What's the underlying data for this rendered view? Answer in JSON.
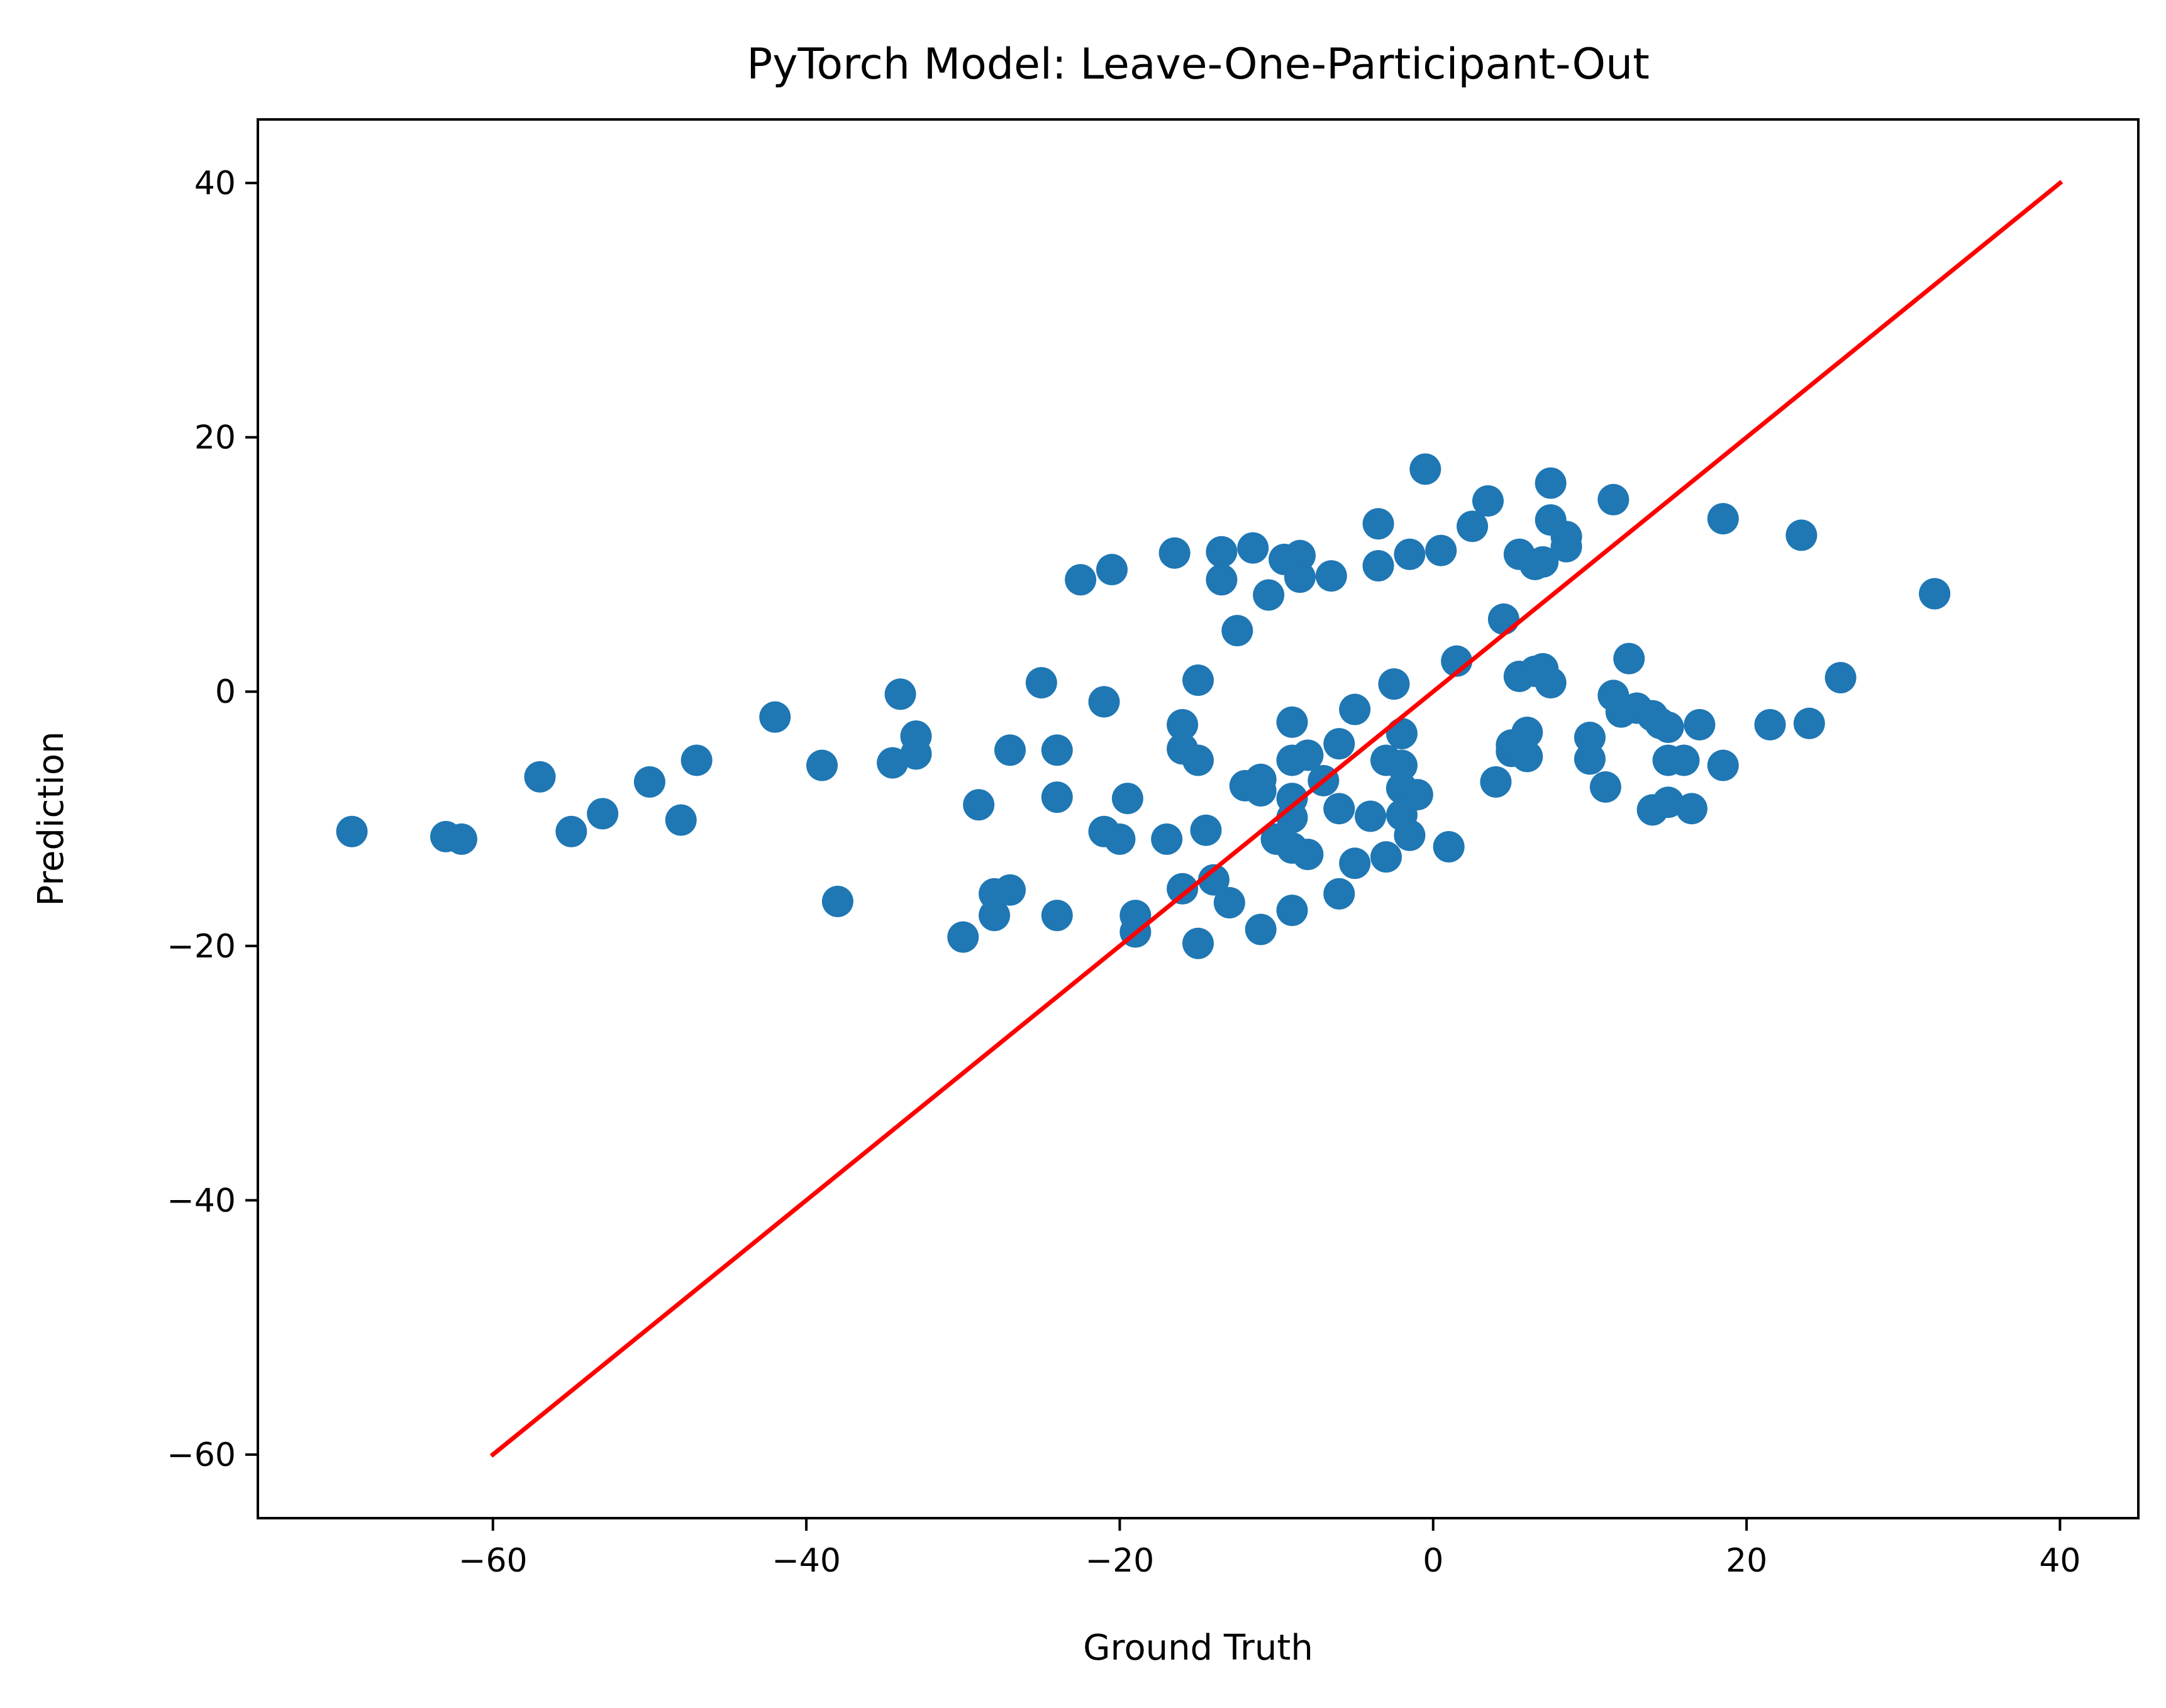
{
  "chart_data": {
    "type": "scatter",
    "title": "PyTorch Model: Leave-One-Participant-Out",
    "xlabel": "Ground Truth",
    "ylabel": "Prediction",
    "xlim": [
      -75,
      45
    ],
    "ylim": [
      -65,
      45
    ],
    "xticks": [
      -60,
      -40,
      -20,
      0,
      20,
      40
    ],
    "yticks": [
      -60,
      -40,
      -20,
      0,
      20,
      40
    ],
    "xtick_labels": [
      "−60",
      "−40",
      "−20",
      "0",
      "20",
      "40"
    ],
    "ytick_labels": [
      "−60",
      "−40",
      "−20",
      "0",
      "20",
      "40"
    ],
    "grid": false,
    "point_color": "#1f77b4",
    "line_color": "#ff0000",
    "reference_line": {
      "x": [
        -60,
        40
      ],
      "y": [
        -60,
        40
      ]
    },
    "points": [
      [
        -69,
        -11
      ],
      [
        -63,
        -11.4
      ],
      [
        -62,
        -11.6
      ],
      [
        -57,
        -6.7
      ],
      [
        -55,
        -11
      ],
      [
        -53,
        -9.6
      ],
      [
        -50,
        -7.1
      ],
      [
        -48,
        -10.1
      ],
      [
        -47,
        -5.4
      ],
      [
        -42,
        -2
      ],
      [
        -39,
        -5.8
      ],
      [
        -38,
        -16.5
      ],
      [
        -34.5,
        -5.6
      ],
      [
        -34,
        -0.2
      ],
      [
        -33,
        -3.5
      ],
      [
        -33,
        -4.9
      ],
      [
        -30,
        -19.3
      ],
      [
        -29,
        -8.9
      ],
      [
        -28,
        -15.9
      ],
      [
        -28,
        -17.6
      ],
      [
        -27,
        -15.6
      ],
      [
        -27,
        -4.6
      ],
      [
        -25,
        0.7
      ],
      [
        -24,
        -4.6
      ],
      [
        -24,
        -8.3
      ],
      [
        -24,
        -17.6
      ],
      [
        -22.5,
        8.8
      ],
      [
        -21,
        -0.8
      ],
      [
        -21,
        -11
      ],
      [
        -20.5,
        9.6
      ],
      [
        -20,
        -11.6
      ],
      [
        -19.5,
        -8.4
      ],
      [
        -19,
        -17.6
      ],
      [
        -19,
        -18.9
      ],
      [
        -17,
        -11.6
      ],
      [
        -16.5,
        10.9
      ],
      [
        -16,
        -15.5
      ],
      [
        -16,
        -2.6
      ],
      [
        -16,
        -4.5
      ],
      [
        -15,
        -5.4
      ],
      [
        -15,
        0.9
      ],
      [
        -15,
        -19.8
      ],
      [
        -14.5,
        -10.9
      ],
      [
        -14,
        -14.8
      ],
      [
        -13.5,
        11
      ],
      [
        -13.5,
        8.8
      ],
      [
        -13,
        -16.6
      ],
      [
        -12.5,
        4.8
      ],
      [
        -12,
        -7.4
      ],
      [
        -11.5,
        11.3
      ],
      [
        -11,
        -7.8
      ],
      [
        -11,
        -18.7
      ],
      [
        -11,
        -6.9
      ],
      [
        -10.5,
        7.6
      ],
      [
        -10,
        -11.6
      ],
      [
        -9.5,
        10.4
      ],
      [
        -9,
        -8.4
      ],
      [
        -9,
        -5.4
      ],
      [
        -9,
        -2.4
      ],
      [
        -9,
        -9.9
      ],
      [
        -9,
        -12.3
      ],
      [
        -9,
        -17.2
      ],
      [
        -8.5,
        10.7
      ],
      [
        -8.5,
        9
      ],
      [
        -8,
        -12.8
      ],
      [
        -8,
        -5
      ],
      [
        -7,
        -7
      ],
      [
        -6.5,
        9.1
      ],
      [
        -6,
        -4.1
      ],
      [
        -6,
        -9.2
      ],
      [
        -6,
        -15.9
      ],
      [
        -5,
        -13.5
      ],
      [
        -5,
        -1.4
      ],
      [
        -4,
        -9.8
      ],
      [
        -3.5,
        13.2
      ],
      [
        -3.5,
        9.9
      ],
      [
        -3,
        -5.4
      ],
      [
        -3,
        -13
      ],
      [
        -2.5,
        0.6
      ],
      [
        -2,
        -5.8
      ],
      [
        -2,
        -7.6
      ],
      [
        -2,
        -9.7
      ],
      [
        -2,
        -3.3
      ],
      [
        -1.5,
        10.8
      ],
      [
        -1.5,
        -11.3
      ],
      [
        -1,
        -8.1
      ],
      [
        -0.5,
        17.5
      ],
      [
        0.5,
        11.1
      ],
      [
        1,
        -12.2
      ],
      [
        1.5,
        2.4
      ],
      [
        2.5,
        13
      ],
      [
        3.5,
        15
      ],
      [
        4,
        -7.1
      ],
      [
        4.5,
        5.7
      ],
      [
        5,
        -4.7
      ],
      [
        5,
        -4.2
      ],
      [
        5.5,
        1.2
      ],
      [
        5.5,
        10.8
      ],
      [
        6,
        -5.1
      ],
      [
        6,
        -3.2
      ],
      [
        6.5,
        10
      ],
      [
        6.5,
        1.6
      ],
      [
        7,
        10.2
      ],
      [
        7,
        1.8
      ],
      [
        7.5,
        16.4
      ],
      [
        7.5,
        13.5
      ],
      [
        7.5,
        0.7
      ],
      [
        8.5,
        12.2
      ],
      [
        8.5,
        11.4
      ],
      [
        10,
        -5.3
      ],
      [
        10,
        -3.6
      ],
      [
        11,
        -7.5
      ],
      [
        11.5,
        15.1
      ],
      [
        11.5,
        -0.3
      ],
      [
        12,
        -1.6
      ],
      [
        12.5,
        2.6
      ],
      [
        13,
        -1.3
      ],
      [
        14,
        -9.3
      ],
      [
        14,
        -1.9
      ],
      [
        14.5,
        -2.5
      ],
      [
        15,
        -8.7
      ],
      [
        15,
        -5.4
      ],
      [
        15,
        -2.8
      ],
      [
        16,
        -5.4
      ],
      [
        16.5,
        -9.2
      ],
      [
        17,
        -2.6
      ],
      [
        18.5,
        13.6
      ],
      [
        18.5,
        -5.8
      ],
      [
        21.5,
        -2.6
      ],
      [
        23.5,
        12.3
      ],
      [
        24,
        -2.5
      ],
      [
        26,
        1.1
      ],
      [
        32,
        7.7
      ]
    ]
  }
}
